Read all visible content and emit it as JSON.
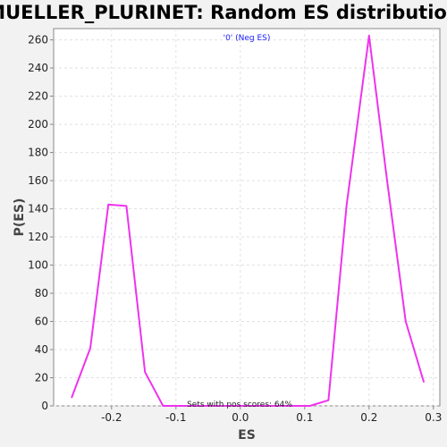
{
  "chart_data": {
    "type": "line",
    "title": "MUELLER_PLURINET: Random ES distribution",
    "subtitle": "'0' (Neg ES)",
    "xlabel": "ES",
    "ylabel": "P(ES)",
    "annotation": "Sets with pos scores: 64%",
    "xlim": [
      -0.29,
      0.31
    ],
    "ylim": [
      0,
      268
    ],
    "xticks": [
      -0.2,
      -0.1,
      0.0,
      0.1,
      0.2,
      0.3
    ],
    "xtick_labels": [
      "-0.2",
      "-0.1",
      "0.0",
      "0.1",
      "0.2",
      "0.3"
    ],
    "yticks": [
      0,
      20,
      40,
      60,
      80,
      100,
      120,
      140,
      160,
      180,
      200,
      220,
      240,
      260
    ],
    "grid": true,
    "series_color": "#ee33ee",
    "series": [
      {
        "x": [
          -0.262,
          -0.233,
          -0.205,
          -0.177,
          -0.148,
          -0.12,
          -0.091,
          -0.063,
          -0.034,
          -0.006,
          0.023,
          0.051,
          0.08,
          0.108,
          0.137,
          0.165,
          0.2,
          0.228,
          0.257,
          0.285
        ],
        "values": [
          6,
          41,
          143,
          142,
          24,
          0,
          0,
          0,
          0,
          0,
          0,
          0,
          0,
          0,
          4,
          142,
          263,
          160,
          60,
          17
        ]
      }
    ]
  }
}
